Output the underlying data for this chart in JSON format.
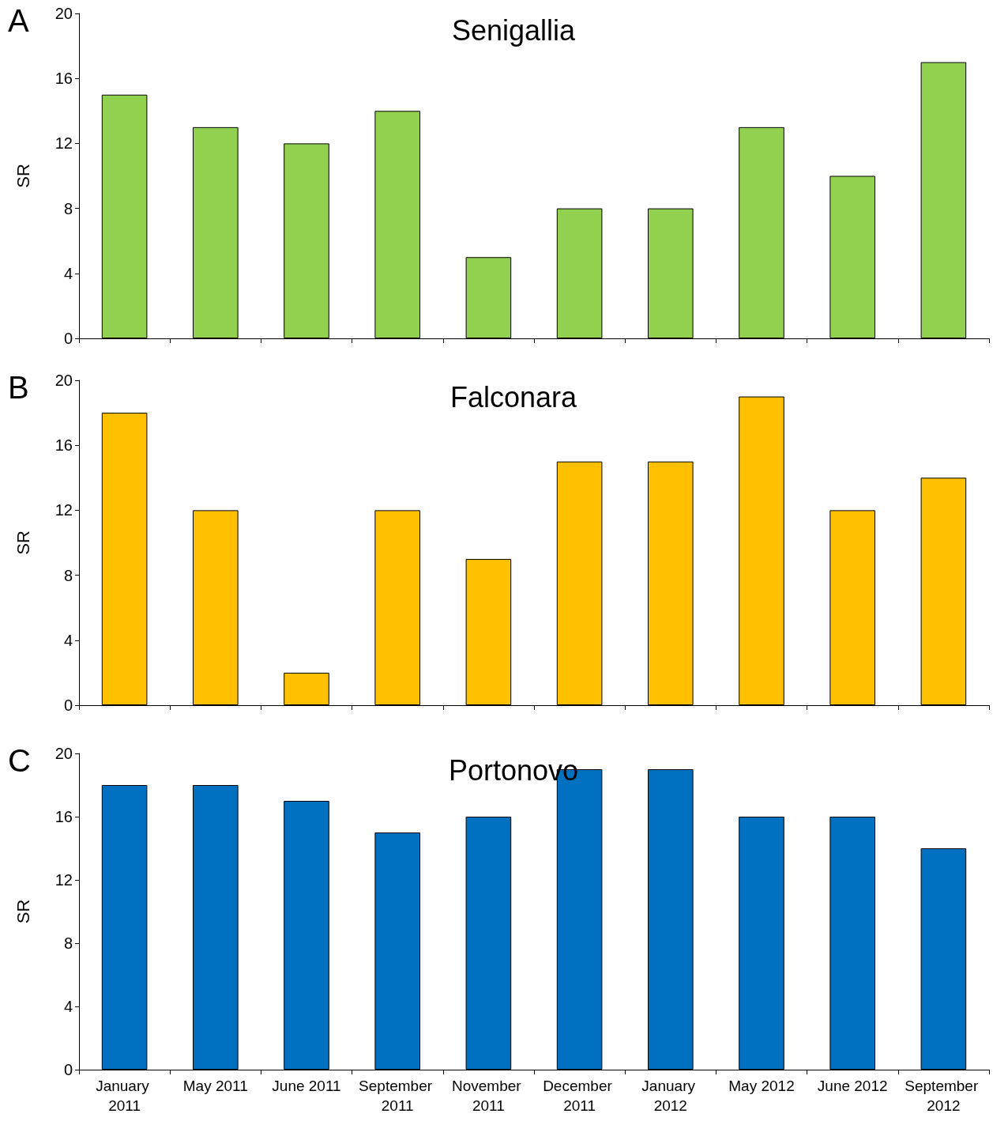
{
  "chart_data": [
    {
      "type": "bar",
      "title": "Senigallia",
      "ylabel": "SR",
      "annotations": [
        "A"
      ],
      "categories": [
        "January 2011",
        "May 2011",
        "June 2011",
        "September 2011",
        "November 2011",
        "December 2011",
        "January 2012",
        "May 2012",
        "June 2012",
        "September 2012"
      ],
      "color": "#92d050",
      "values": [
        15,
        13,
        12,
        14,
        5,
        8,
        8,
        13,
        10,
        17
      ],
      "ylim": [
        0,
        20
      ],
      "yticks": [
        0,
        4,
        8,
        12,
        16,
        20
      ],
      "tick_labels": "y"
    },
    {
      "type": "bar",
      "title": "Falconara",
      "ylabel": "SR",
      "annotations": [
        "B"
      ],
      "categories": [
        "January 2011",
        "May 2011",
        "June 2011",
        "September 2011",
        "November 2011",
        "December 2011",
        "January 2012",
        "May 2012",
        "June 2012",
        "September 2012"
      ],
      "color": "#ffc000",
      "values": [
        18,
        12,
        2,
        12,
        9,
        15,
        15,
        19,
        12,
        14
      ],
      "ylim": [
        0,
        20
      ],
      "yticks": [
        0,
        4,
        8,
        12,
        16,
        20
      ],
      "tick_labels": "y"
    },
    {
      "type": "bar",
      "title": "Portonovo",
      "ylabel": "SR",
      "annotations": [
        "C"
      ],
      "categories": [
        "January 2011",
        "May 2011",
        "June 2011",
        "September 2011",
        "November 2011",
        "December 2011",
        "January 2012",
        "May 2012",
        "June 2012",
        "September 2012"
      ],
      "color": "#0070c0",
      "values": [
        18,
        18,
        17,
        15,
        16,
        19,
        19,
        16,
        16,
        14
      ],
      "ylim": [
        0,
        20
      ],
      "yticks": [
        0,
        4,
        8,
        12,
        16,
        20
      ]
    }
  ]
}
